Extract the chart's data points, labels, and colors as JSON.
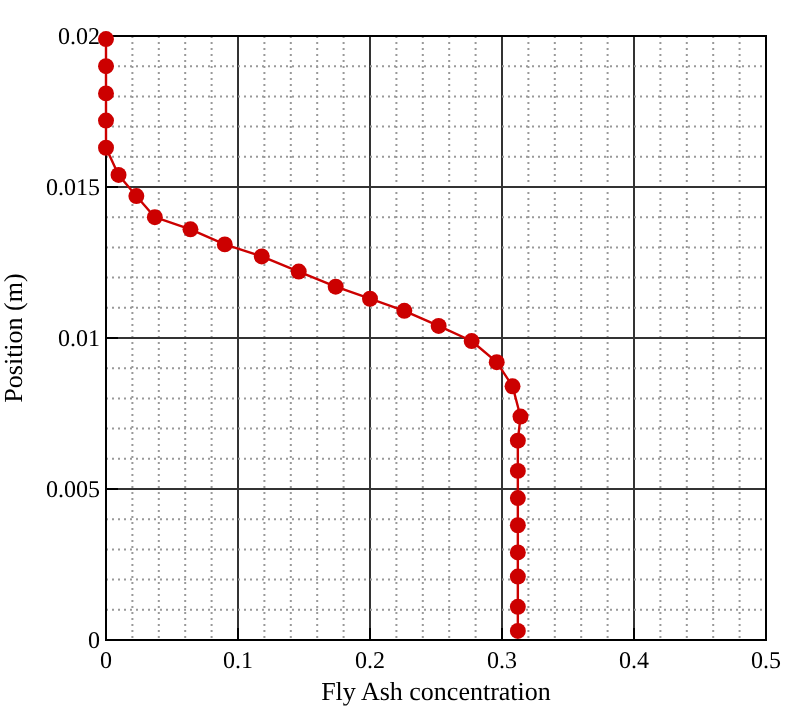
{
  "chart_data": {
    "type": "line",
    "xlabel": "Fly Ash concentration",
    "ylabel": "Position (m)",
    "xlim": [
      0,
      0.5
    ],
    "xticks": [
      0,
      0.1,
      0.2,
      0.3,
      0.4,
      0.5
    ],
    "ylim": [
      0,
      0.02
    ],
    "yticks": [
      0,
      0.005,
      0.01,
      0.015,
      0.02
    ],
    "grid": true,
    "marker": "circle",
    "line_style": "solid",
    "series": [
      {
        "color": "#cc0000",
        "x": [
          0.312,
          0.312,
          0.312,
          0.312,
          0.312,
          0.312,
          0.312,
          0.312,
          0.314,
          0.308,
          0.296,
          0.277,
          0.252,
          0.226,
          0.2,
          0.174,
          0.146,
          0.118,
          0.09,
          0.064,
          0.037,
          0.023,
          0.0095,
          0,
          0,
          0,
          0,
          0
        ],
        "values": [
          0.0003,
          0.0011,
          0.0021,
          0.0029,
          0.0038,
          0.0047,
          0.0056,
          0.0066,
          0.0074,
          0.0084,
          0.0092,
          0.0099,
          0.0104,
          0.0109,
          0.0113,
          0.0117,
          0.0122,
          0.0127,
          0.0131,
          0.0136,
          0.014,
          0.0147,
          0.0154,
          0.0163,
          0.0172,
          0.0181,
          0.019,
          0.0199
        ]
      }
    ]
  }
}
